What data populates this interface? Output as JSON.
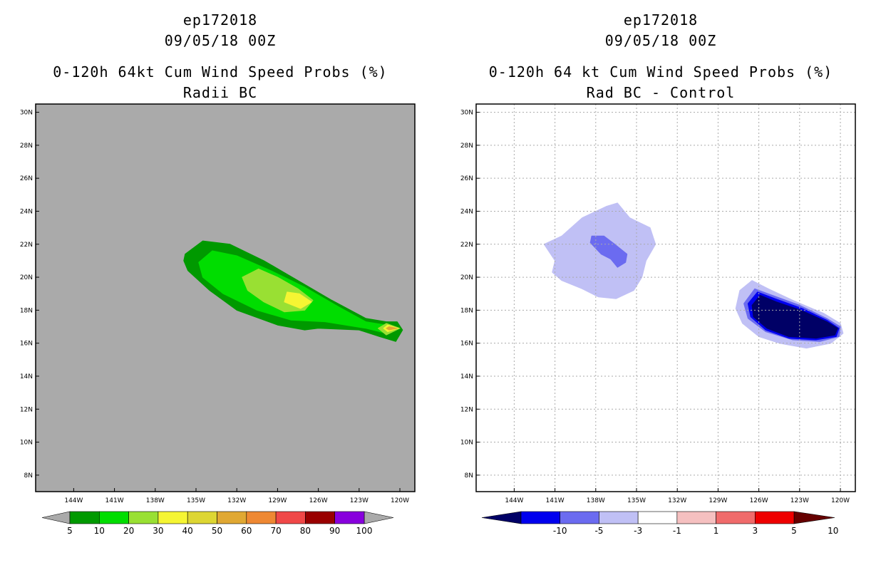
{
  "chart_data": [
    {
      "type": "contour_map",
      "storm_id": "ep172018",
      "datetime": "09/05/18 00Z",
      "title": "0-120h 64kt Cum Wind Speed Probs (%)",
      "subtitle": "Radii BC",
      "x_ticks": [
        "144W",
        "141W",
        "138W",
        "135W",
        "132W",
        "129W",
        "126W",
        "123W",
        "120W"
      ],
      "y_ticks": [
        "30N",
        "28N",
        "26N",
        "24N",
        "22N",
        "20N",
        "18N",
        "16N",
        "14N",
        "12N",
        "10N",
        "8N"
      ],
      "xlim_lon": [
        -146.8,
        -118.9
      ],
      "ylim_lat": [
        7.0,
        30.5
      ],
      "grid": false,
      "background_color": "#aaaaaa",
      "colorbar": {
        "labels": [
          "5",
          "10",
          "20",
          "30",
          "40",
          "50",
          "60",
          "70",
          "80",
          "90",
          "100"
        ],
        "colors": [
          "#009900",
          "#00dd00",
          "#99e033",
          "#f5f533",
          "#ddd633",
          "#e0a833",
          "#ee8833",
          "#f04848",
          "#990000",
          "#8800dd"
        ],
        "under_color": "#aaaaaa",
        "over_color": "#aaaaaa"
      },
      "regions": [
        {
          "level": "5-10%",
          "color": "#009900",
          "points": [
            [
              -135.8,
              21.4
            ],
            [
              -134.5,
              22.2
            ],
            [
              -132.5,
              22.0
            ],
            [
              -130.0,
              21.0
            ],
            [
              -127.5,
              19.8
            ],
            [
              -125.0,
              18.6
            ],
            [
              -122.5,
              17.5
            ],
            [
              -121.0,
              17.3
            ],
            [
              -120.2,
              17.3
            ],
            [
              -119.8,
              16.8
            ],
            [
              -120.3,
              16.1
            ],
            [
              -121.5,
              16.4
            ],
            [
              -123.0,
              16.8
            ],
            [
              -126.0,
              16.9
            ],
            [
              -127.0,
              16.8
            ],
            [
              -129.0,
              17.1
            ],
            [
              -132.0,
              18.0
            ],
            [
              -134.0,
              19.2
            ],
            [
              -135.6,
              20.4
            ],
            [
              -135.9,
              21.0
            ]
          ]
        },
        {
          "level": "10-20%",
          "color": "#00dd00",
          "points": [
            [
              -134.8,
              20.9
            ],
            [
              -133.8,
              21.6
            ],
            [
              -132.0,
              21.3
            ],
            [
              -129.5,
              20.4
            ],
            [
              -127.0,
              19.4
            ],
            [
              -124.5,
              18.2
            ],
            [
              -122.5,
              17.3
            ],
            [
              -121.0,
              17.1
            ],
            [
              -120.0,
              16.9
            ],
            [
              -121.0,
              16.6
            ],
            [
              -122.5,
              16.9
            ],
            [
              -125.5,
              17.3
            ],
            [
              -128.0,
              17.4
            ],
            [
              -130.5,
              18.0
            ],
            [
              -133.0,
              19.0
            ],
            [
              -134.5,
              20.0
            ]
          ]
        },
        {
          "level": "20-30%",
          "color": "#99e033",
          "points": [
            [
              -131.6,
              20.0
            ],
            [
              -130.4,
              20.5
            ],
            [
              -129.0,
              20.0
            ],
            [
              -127.5,
              19.3
            ],
            [
              -126.4,
              18.6
            ],
            [
              -127.0,
              18.0
            ],
            [
              -128.5,
              17.9
            ],
            [
              -130.0,
              18.5
            ],
            [
              -131.2,
              19.2
            ]
          ]
        },
        {
          "level": "30-40%",
          "color": "#f5f533",
          "points": [
            [
              -128.3,
              19.1
            ],
            [
              -127.4,
              19.0
            ],
            [
              -126.5,
              18.5
            ],
            [
              -127.3,
              18.1
            ],
            [
              -128.5,
              18.5
            ]
          ]
        },
        {
          "level": "20-30% tail",
          "color": "#99e033",
          "points": [
            [
              -121.0,
              17.2
            ],
            [
              -120.0,
              16.9
            ],
            [
              -121.0,
              16.5
            ],
            [
              -121.6,
              16.9
            ]
          ]
        },
        {
          "level": "30-40% tail",
          "color": "#f5f533",
          "points": [
            [
              -120.9,
              17.1
            ],
            [
              -120.1,
              16.9
            ],
            [
              -120.9,
              16.7
            ],
            [
              -121.2,
              16.9
            ]
          ]
        },
        {
          "level": "50-60% tail",
          "color": "#e0a833",
          "points": [
            [
              -120.8,
              17.0
            ],
            [
              -120.2,
              16.9
            ],
            [
              -120.8,
              16.8
            ],
            [
              -121.0,
              16.9
            ]
          ]
        }
      ]
    },
    {
      "type": "contour_map",
      "storm_id": "ep172018",
      "datetime": "09/05/18 00Z",
      "title": "0-120h 64 kt Cum Wind Speed Probs (%)",
      "subtitle": "Rad BC - Control",
      "x_ticks": [
        "144W",
        "141W",
        "138W",
        "135W",
        "132W",
        "129W",
        "126W",
        "123W",
        "120W"
      ],
      "y_ticks": [
        "30N",
        "28N",
        "26N",
        "24N",
        "22N",
        "20N",
        "18N",
        "16N",
        "14N",
        "12N",
        "10N",
        "8N"
      ],
      "xlim_lon": [
        -146.8,
        -118.9
      ],
      "ylim_lat": [
        7.0,
        30.5
      ],
      "grid": true,
      "background_color": "#ffffff",
      "colorbar": {
        "labels": [
          "-10",
          "-5",
          "-3",
          "-1",
          "1",
          "3",
          "5",
          "10"
        ],
        "colors": [
          "#000066",
          "#0000ee",
          "#6b6bf0",
          "#c0c0f5",
          "#ffffff",
          "#f5c0c0",
          "#f06b6b",
          "#ee0000",
          "#660000"
        ],
        "under_color": "#000066",
        "over_color": "#660000"
      },
      "regions": [
        {
          "level": "-3 to -1",
          "color": "#c0c0f5",
          "points": [
            [
              -139.0,
              23.6
            ],
            [
              -137.2,
              24.3
            ],
            [
              -136.4,
              24.5
            ],
            [
              -135.5,
              23.6
            ],
            [
              -134.0,
              23.0
            ],
            [
              -133.6,
              22.0
            ],
            [
              -134.3,
              21.0
            ],
            [
              -134.6,
              20.0
            ],
            [
              -135.2,
              19.2
            ],
            [
              -136.5,
              18.7
            ],
            [
              -137.8,
              18.8
            ],
            [
              -139.0,
              19.3
            ],
            [
              -140.5,
              19.8
            ],
            [
              -141.2,
              20.3
            ],
            [
              -141.0,
              21.0
            ],
            [
              -141.8,
              22.0
            ],
            [
              -140.5,
              22.5
            ]
          ]
        },
        {
          "level": "-5 to -3",
          "color": "#6b6bf0",
          "points": [
            [
              -138.3,
              22.5
            ],
            [
              -137.4,
              22.5
            ],
            [
              -136.6,
              22.0
            ],
            [
              -135.7,
              21.4
            ],
            [
              -135.8,
              20.9
            ],
            [
              -136.4,
              20.6
            ],
            [
              -136.9,
              21.1
            ],
            [
              -137.6,
              21.4
            ],
            [
              -138.4,
              22.1
            ]
          ]
        },
        {
          "level": "-3 to -1 east",
          "color": "#c0c0f5",
          "points": [
            [
              -126.5,
              19.8
            ],
            [
              -125.3,
              19.3
            ],
            [
              -123.5,
              18.6
            ],
            [
              -121.2,
              17.8
            ],
            [
              -120.0,
              17.2
            ],
            [
              -119.8,
              16.6
            ],
            [
              -120.7,
              16.0
            ],
            [
              -122.5,
              15.7
            ],
            [
              -124.5,
              16.0
            ],
            [
              -126.0,
              16.4
            ],
            [
              -127.2,
              17.2
            ],
            [
              -127.7,
              18.1
            ],
            [
              -127.4,
              19.2
            ]
          ]
        },
        {
          "level": "-5 to -3 east",
          "color": "#6b6bf0",
          "points": [
            [
              -126.3,
              19.3
            ],
            [
              -125.0,
              18.9
            ],
            [
              -123.0,
              18.3
            ],
            [
              -121.0,
              17.5
            ],
            [
              -120.0,
              17.0
            ],
            [
              -120.1,
              16.4
            ],
            [
              -121.5,
              16.1
            ],
            [
              -123.5,
              16.2
            ],
            [
              -125.5,
              16.7
            ],
            [
              -126.8,
              17.5
            ],
            [
              -127.1,
              18.4
            ]
          ]
        },
        {
          "level": "-10 to -5 east",
          "color": "#0000ee",
          "points": [
            [
              -126.1,
              19.1
            ],
            [
              -124.8,
              18.7
            ],
            [
              -122.8,
              18.1
            ],
            [
              -121.0,
              17.4
            ],
            [
              -120.1,
              16.9
            ],
            [
              -120.3,
              16.4
            ],
            [
              -121.8,
              16.2
            ],
            [
              -123.8,
              16.3
            ],
            [
              -125.5,
              16.8
            ],
            [
              -126.6,
              17.6
            ],
            [
              -126.8,
              18.4
            ]
          ]
        },
        {
          "level": "< -10 east",
          "color": "#000066",
          "points": [
            [
              -125.9,
              18.9
            ],
            [
              -124.7,
              18.5
            ],
            [
              -122.9,
              18.0
            ],
            [
              -121.0,
              17.3
            ],
            [
              -120.2,
              16.9
            ],
            [
              -120.4,
              16.5
            ],
            [
              -121.8,
              16.3
            ],
            [
              -123.8,
              16.4
            ],
            [
              -125.4,
              16.9
            ],
            [
              -126.4,
              17.6
            ],
            [
              -126.5,
              18.3
            ]
          ]
        }
      ]
    }
  ]
}
